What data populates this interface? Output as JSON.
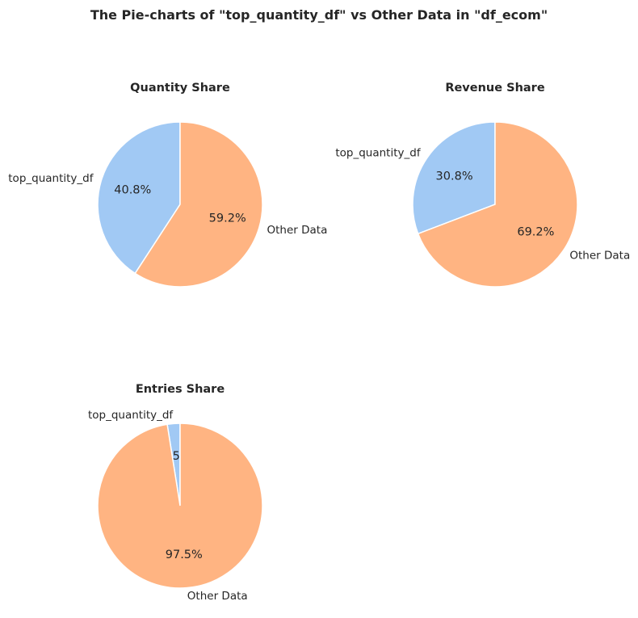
{
  "chart_data": {
    "type": "pie",
    "title": "The Pie-charts of \"top_quantity_df\" vs Other Data in \"df_ecom\"",
    "colors": {
      "top_quantity_df": "#a1c9f4",
      "Other Data": "#ffb482"
    },
    "charts": [
      {
        "title": "Quantity Share",
        "slices": [
          {
            "label": "top_quantity_df",
            "value": 40.8,
            "pct_label": "40.8%"
          },
          {
            "label": "Other Data",
            "value": 59.2,
            "pct_label": "59.2%"
          }
        ]
      },
      {
        "title": "Revenue Share",
        "slices": [
          {
            "label": "top_quantity_df",
            "value": 30.8,
            "pct_label": "30.8%"
          },
          {
            "label": "Other Data",
            "value": 69.2,
            "pct_label": "69.2%"
          }
        ]
      },
      {
        "title": "Entries Share",
        "slices": [
          {
            "label": "top_quantity_df",
            "value": 2.5,
            "pct_label": "2.5%"
          },
          {
            "label": "Other Data",
            "value": 97.5,
            "pct_label": "97.5%"
          }
        ]
      }
    ]
  }
}
